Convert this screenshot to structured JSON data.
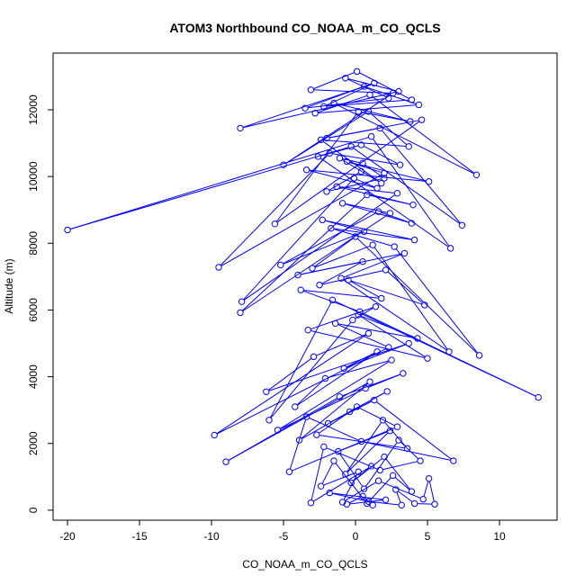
{
  "chart_data": {
    "type": "line",
    "title": "ATOM3 Northbound CO_NOAA_m_CO_QCLS",
    "xlabel": "CO_NOAA_m_CO_QCLS",
    "ylabel": "Altitude (m)",
    "xlim": [
      -21,
      14
    ],
    "ylim": [
      -300,
      13700
    ],
    "xticks": [
      -20,
      -15,
      -10,
      -5,
      0,
      5,
      10
    ],
    "yticks": [
      0,
      2000,
      4000,
      6000,
      8000,
      10000,
      12000
    ],
    "grid": false,
    "series_color": "#0000ff",
    "marker": "open-circle",
    "series": [
      {
        "x": [
          1.2,
          0.5,
          -0.6,
          2.1,
          -1.8,
          0.9,
          3.2,
          2.8,
          4.1,
          5.5,
          5.1,
          4.7,
          1.6,
          -0.9,
          0.2,
          -2.4,
          -1.5,
          0.8,
          2.6,
          3.9,
          2.0,
          -0.3,
          1.1,
          -3.1,
          -2.2,
          1.7,
          4.5,
          3.0,
          0.6,
          -1.2,
          2.4,
          -0.7,
          1.9,
          3.6,
          -2.7,
          0.1,
          2.9,
          -4.6,
          -3.4,
          0.4,
          6.8,
          1.3,
          -1.9,
          2.2,
          -0.4,
          -3.9,
          1.0,
          -9.0,
          -1.1,
          3.3,
          0.7,
          -5.4,
          2.5,
          -2.1,
          -4.2,
          1.5,
          -0.8,
          3.7,
          -6.2,
          -2.9,
          0.9,
          -9.8,
          2.3,
          -1.4,
          4.3,
          0.2,
          5.0,
          -3.3,
          1.4,
          -0.2,
          -6.0,
          -1.6,
          12.7,
          0.3,
          -3.8,
          1.8,
          -0.5,
          4.8,
          2.1,
          -2.5,
          0.5,
          -4.0,
          3.4,
          -1.0,
          6.5,
          1.2,
          -3.0,
          0.0,
          8.6,
          2.7,
          -1.7,
          4.1,
          -2.3,
          0.6,
          -5.2,
          1.6,
          3.9,
          -0.9,
          2.4,
          -8.0,
          0.8,
          4.0,
          -1.3,
          2.9,
          -7.9,
          -0.1,
          1.5,
          -3.4,
          5.1,
          -0.6,
          2.0,
          -9.5,
          -1.8,
          3.1,
          0.4,
          -2.6,
          6.6,
          1.1,
          -20.0,
          -0.3,
          7.4,
          1.7,
          -2.0,
          4.6,
          -5.6,
          0.2,
          3.8,
          -1.5,
          8.4,
          1.0,
          -2.8,
          4.4,
          0.6,
          -3.5,
          2.3,
          -0.7,
          3.0,
          -8.0,
          1.3,
          -2.2,
          3.9,
          0.1,
          -3.1,
          2.6,
          -5.0,
          0.9,
          3.7,
          -2.4,
          1.8,
          -1.1,
          0.5,
          2.0,
          -2.0,
          0.4
        ],
        "y": [
          150,
          420,
          180,
          310,
          520,
          260,
          150,
          620,
          200,
          180,
          950,
          330,
          880,
          240,
          1150,
          720,
          1480,
          200,
          1040,
          560,
          1600,
          820,
          1320,
          220,
          1900,
          1200,
          1480,
          2100,
          640,
          1760,
          2380,
          1080,
          2700,
          1850,
          2260,
          3100,
          2500,
          1150,
          2800,
          2060,
          1480,
          3300,
          2600,
          3560,
          2950,
          2100,
          3850,
          1450,
          3400,
          4100,
          3650,
          2400,
          4500,
          3950,
          3100,
          4750,
          4250,
          5000,
          3550,
          4600,
          5300,
          2250,
          4880,
          5600,
          5150,
          5850,
          4550,
          5400,
          6100,
          5700,
          2700,
          6300,
          3380,
          5950,
          6600,
          6350,
          6900,
          6150,
          7200,
          6750,
          7450,
          7050,
          7700,
          6950,
          4750,
          7950,
          7250,
          8200,
          4640,
          7900,
          8450,
          8100,
          8700,
          8350,
          7350,
          8950,
          8600,
          9200,
          8900,
          5920,
          9450,
          9150,
          9700,
          9500,
          6250,
          9950,
          9650,
          10200,
          9850,
          10450,
          10100,
          7280,
          10700,
          10350,
          10950,
          10600,
          7850,
          11200,
          8400,
          10900,
          8540,
          11450,
          11150,
          11700,
          8580,
          11950,
          11650,
          12200,
          10050,
          12450,
          11900,
          12150,
          12700,
          12050,
          12350,
          12950,
          12550,
          11450,
          12800,
          12100,
          12300,
          13150,
          12600,
          12500,
          10350,
          11950,
          10900,
          11100,
          9800,
          10550,
          10400,
          9950,
          9550,
          10150
        ]
      }
    ]
  }
}
